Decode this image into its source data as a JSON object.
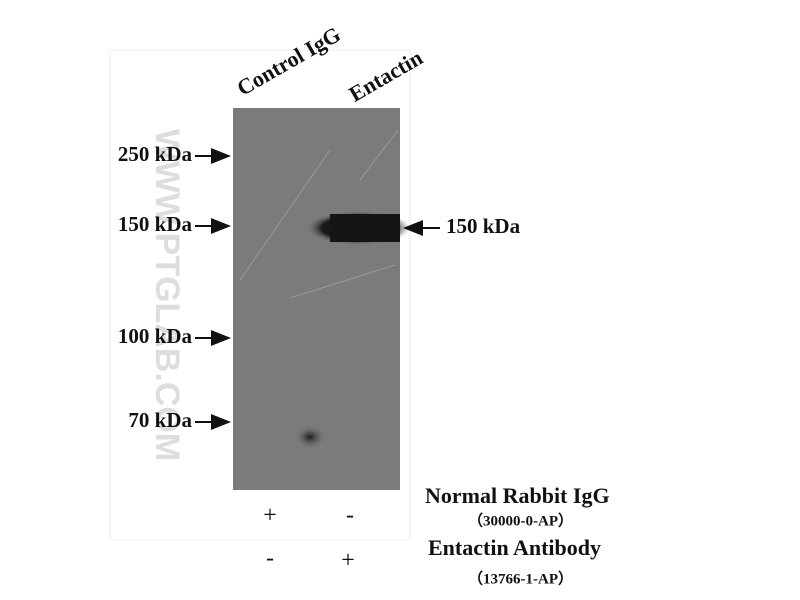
{
  "watermark": "WWW.PTGLAB.COM",
  "lanes": [
    "Control IgG",
    "Entactin"
  ],
  "markers": [
    "250 kDa",
    "150 kDa",
    "100 kDa",
    "70 kDa"
  ],
  "band_label": "150 kDa",
  "treatments": [
    {
      "name": "Normal Rabbit IgG",
      "catalog": "（30000-0-AP）",
      "signs": [
        "+",
        "-"
      ]
    },
    {
      "name": "Entactin Antibody",
      "catalog": "（13766-1-AP）",
      "signs": [
        "-",
        "+"
      ]
    }
  ]
}
